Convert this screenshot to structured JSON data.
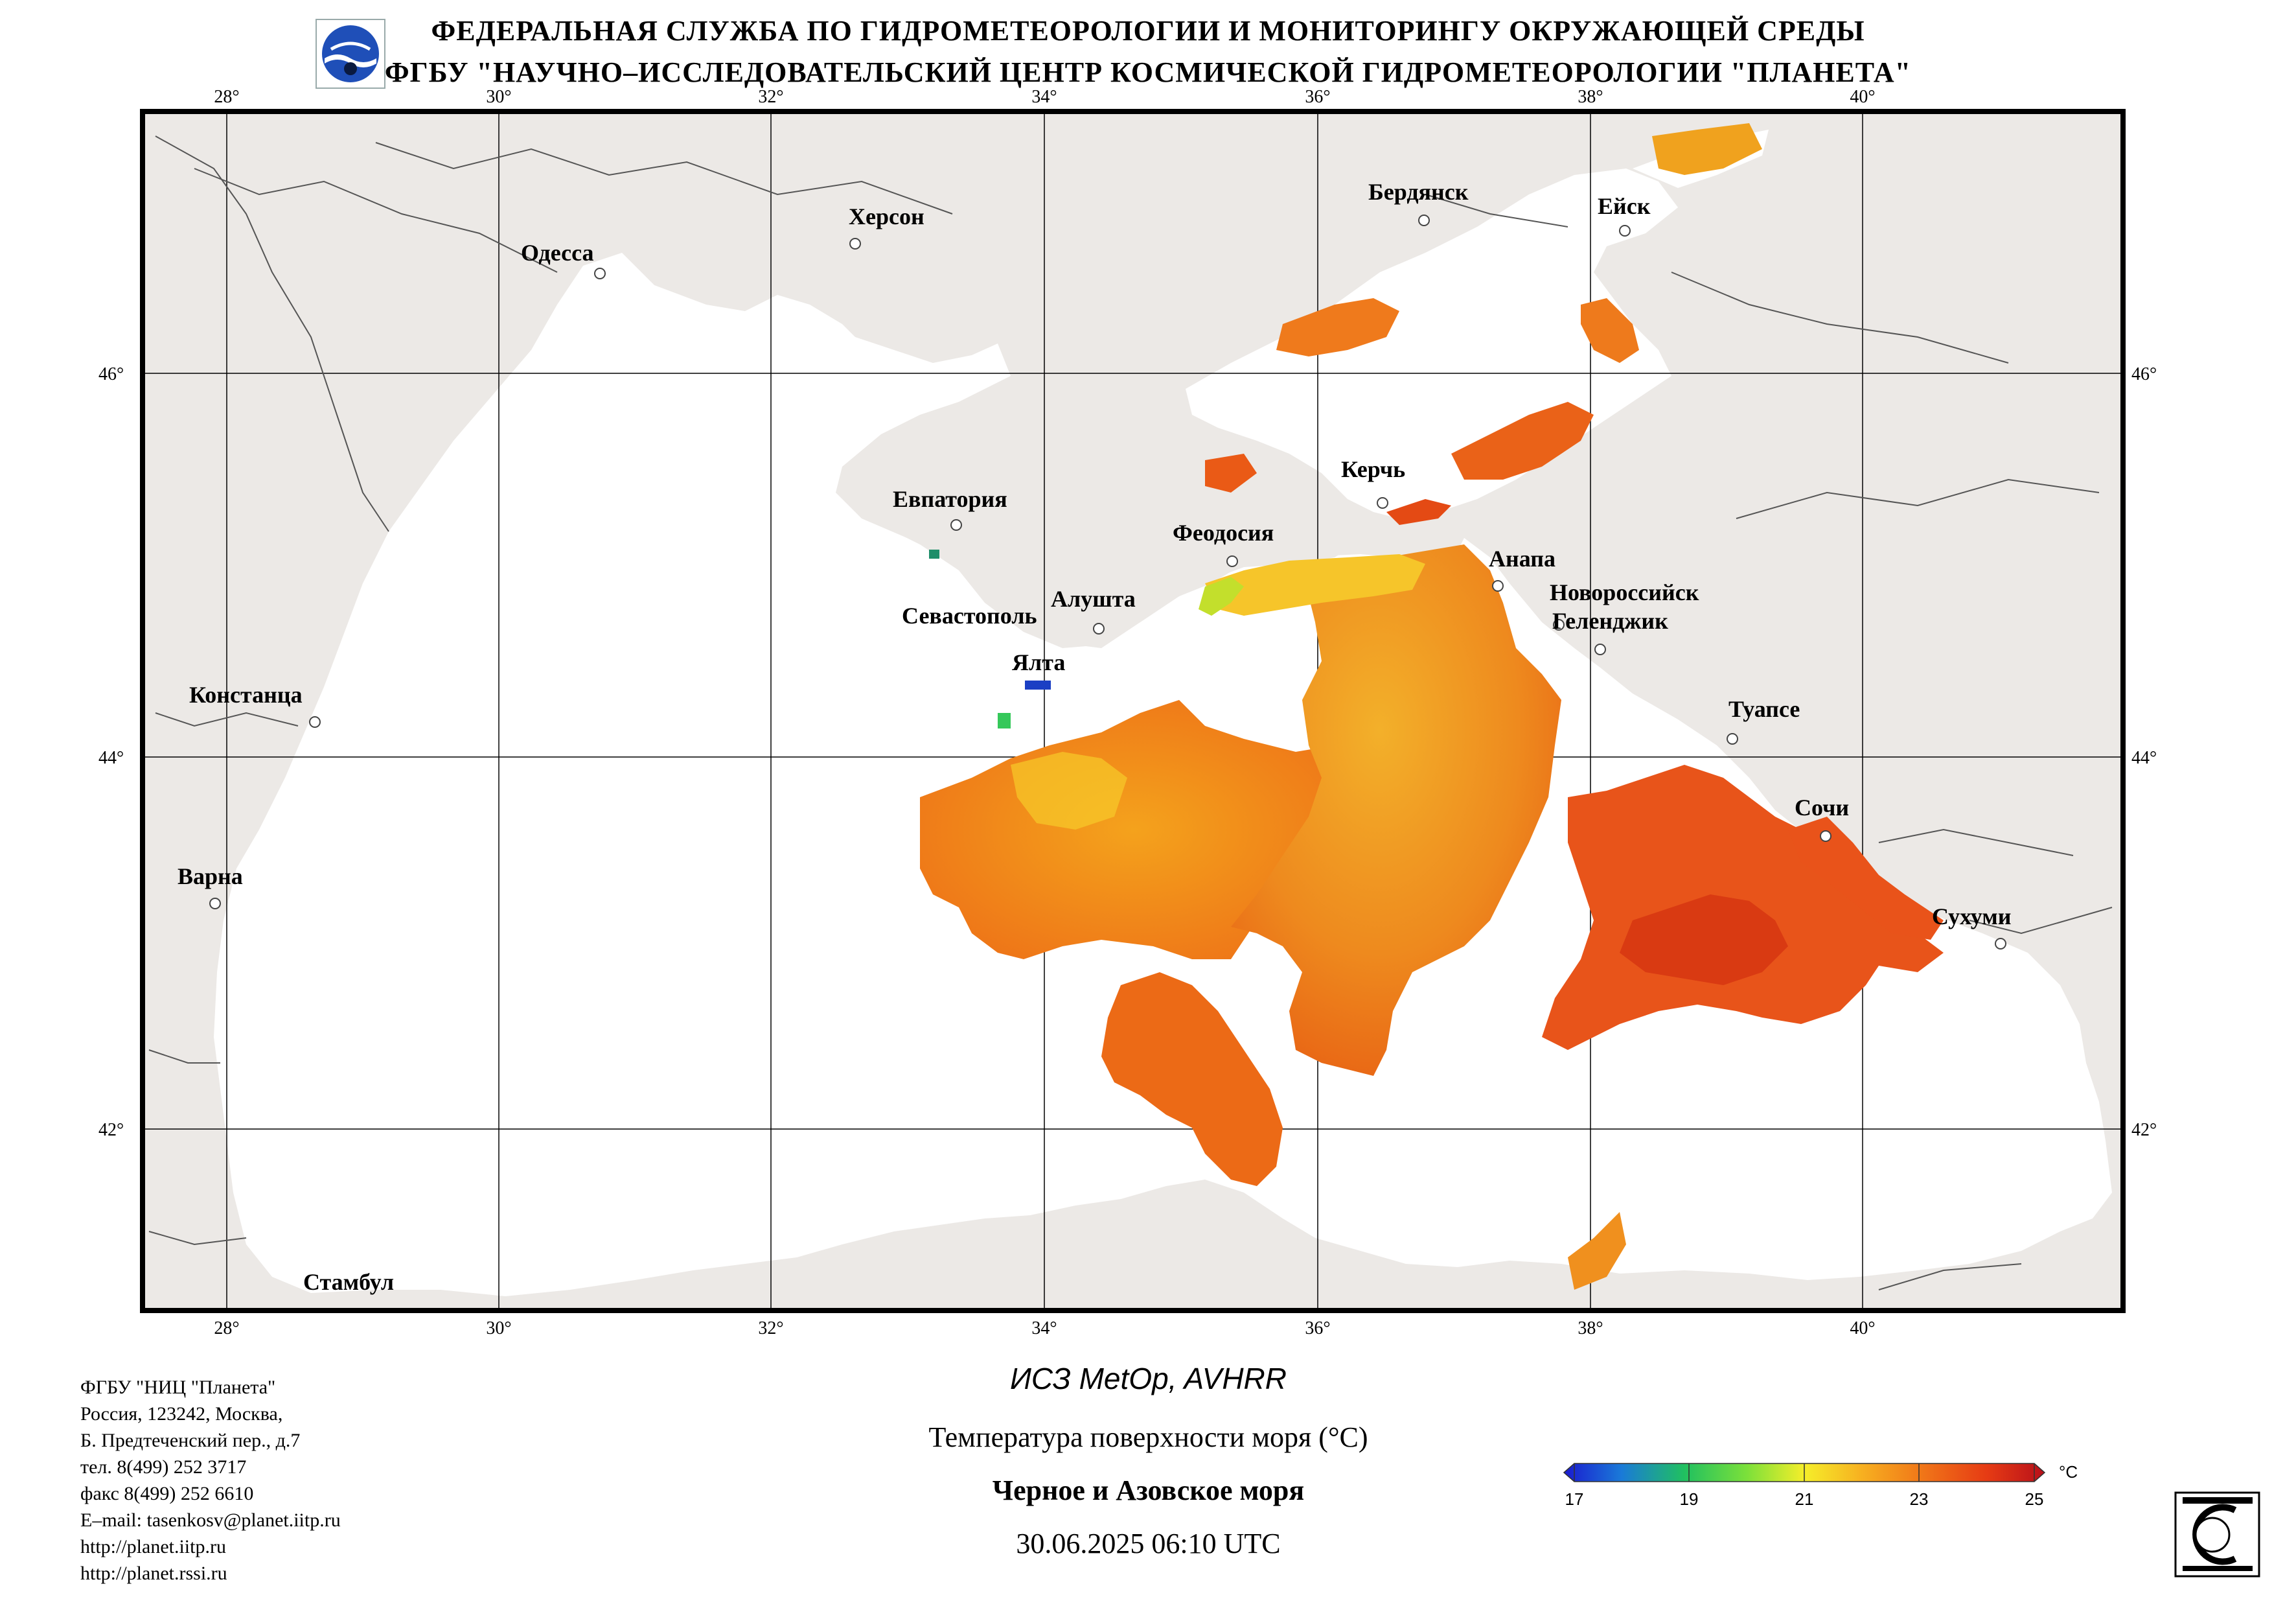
{
  "header": {
    "line1": "ФЕДЕРАЛЬНАЯ СЛУЖБА ПО ГИДРОМЕТЕОРОЛОГИИ И МОНИТОРИНГУ ОКРУЖАЮЩЕЙ СРЕДЫ",
    "line2": "ФГБУ \"НАУЧНО–ИССЛЕДОВАТЕЛЬСКИЙ ЦЕНТР КОСМИЧЕСКОЙ ГИДРОМЕТЕОРОЛОГИИ \"ПЛАНЕТА\""
  },
  "map": {
    "lon_ticks": [
      "28°",
      "30°",
      "32°",
      "34°",
      "36°",
      "38°",
      "40°"
    ],
    "lat_ticks": [
      "46°",
      "44°",
      "42°"
    ],
    "cities": {
      "odessa": "Одесса",
      "kherson": "Херсон",
      "berdyansk": "Бердянск",
      "yeysk": "Ейск",
      "evpatoria": "Евпатория",
      "kerch": "Керчь",
      "feodosia": "Феодосия",
      "anapa": "Анапа",
      "sevastopol": "Севастополь",
      "alushta": "Алушта",
      "novorossiysk": "Новороссийск",
      "gelendzhik": "Геленджик",
      "yalta": "Ялта",
      "constanta": "Констанца",
      "tuapse": "Туапсе",
      "sochi": "Сочи",
      "varna": "Варна",
      "sukhumi": "Сухуми",
      "istanbul": "Стамбул"
    },
    "colors": {
      "land": "#ece9e6",
      "sea": "#ffffff",
      "warm": "#ef7a1c",
      "hot": "#e04a12",
      "mild": "#f6b21e"
    }
  },
  "caption": {
    "satellite": "ИСЗ MetOp, AVHRR",
    "parameter": "Температура поверхности моря (°С)",
    "region": "Черное и Азовское моря",
    "datetime": "30.06.2025 06:10 UTC"
  },
  "colorbar": {
    "unit": "°С",
    "ticks": [
      "17",
      "19",
      "21",
      "23",
      "25"
    ],
    "min": 17,
    "max": 25
  },
  "organization": {
    "lines": [
      "ФГБУ \"НИЦ \"Планета\"",
      "Россия, 123242, Москва,",
      "Б. Предтеченский пер., д.7",
      "тел. 8(499) 252 3717",
      "факс 8(499) 252 6610",
      "E–mail: tasenkosv@planet.iitp.ru",
      "http://planet.iitp.ru",
      "http://planet.rssi.ru"
    ]
  }
}
